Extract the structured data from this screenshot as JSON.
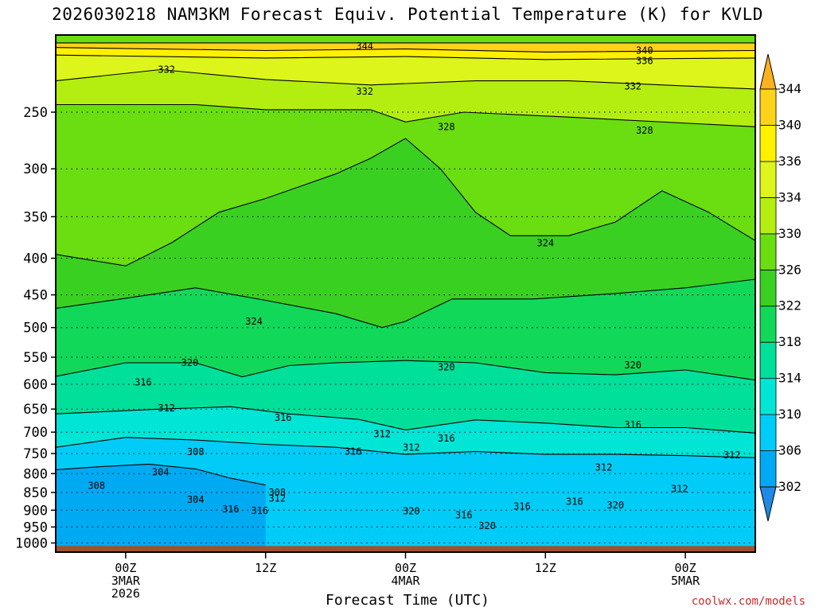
{
  "title": "2026030218 NAM3KM Forecast Equiv. Potential Temperature (K) for KVLD",
  "credit": "coolwx.com/models",
  "chart_data": {
    "type": "contour",
    "variable": "Equivalent potential temperature (K)",
    "xlabel": "Forecast Time (UTC)",
    "ylabel": "",
    "y_scale": "log-pressure",
    "y_direction": "decreasing-upward",
    "x_range_hours": [
      -6,
      54
    ],
    "y_range_hPa": [
      1030,
      195
    ],
    "y_ticks": [
      250,
      300,
      350,
      400,
      450,
      500,
      550,
      600,
      650,
      700,
      750,
      800,
      850,
      900,
      950,
      1000
    ],
    "x_ticks": [
      {
        "hour": 0,
        "lines": [
          "00Z",
          "3MAR",
          "2026"
        ]
      },
      {
        "hour": 12,
        "lines": [
          "12Z"
        ]
      },
      {
        "hour": 24,
        "lines": [
          "00Z",
          "4MAR"
        ]
      },
      {
        "hour": 36,
        "lines": [
          "12Z"
        ]
      },
      {
        "hour": 48,
        "lines": [
          "00Z",
          "5MAR"
        ]
      }
    ],
    "grid": "dotted horizontal lines at pressure ticks",
    "ground_below_hPa": 1010,
    "ground_color": "#a0522d",
    "colorbar": {
      "placement": "right",
      "extend": "both",
      "levels": [
        302,
        306,
        310,
        314,
        318,
        322,
        326,
        330,
        334,
        336,
        340,
        344
      ],
      "tick_labels": [
        "302",
        "306",
        "310",
        "314",
        "318",
        "322",
        "326",
        "330",
        "334",
        "336",
        "340",
        "344"
      ],
      "colors": [
        "#1e8ae6",
        "#00aaf2",
        "#00ccf7",
        "#00e5d6",
        "#00e09a",
        "#12d85a",
        "#3ad022",
        "#6ade10",
        "#b4ee10",
        "#ddf51a",
        "#fff000",
        "#ffd21a",
        "#ffb01e"
      ]
    },
    "series": [
      {
        "value": 344,
        "points": [
          [
            -6,
            200
          ],
          [
            54,
            200
          ]
        ]
      },
      {
        "value": 340,
        "points": [
          [
            -6,
            203
          ],
          [
            12,
            205
          ],
          [
            24,
            204
          ],
          [
            36,
            206
          ],
          [
            54,
            205
          ]
        ]
      },
      {
        "value": 336,
        "points": [
          [
            -6,
            208
          ],
          [
            12,
            210
          ],
          [
            24,
            209
          ],
          [
            36,
            211
          ],
          [
            54,
            210
          ]
        ]
      },
      {
        "value": 332,
        "points": [
          [
            -6,
            226
          ],
          [
            3,
            218
          ],
          [
            12,
            225
          ],
          [
            21,
            229
          ],
          [
            30,
            226
          ],
          [
            38,
            226
          ],
          [
            54,
            232
          ]
        ]
      },
      {
        "value": 328,
        "points": [
          [
            -6,
            244
          ],
          [
            6,
            244
          ],
          [
            12,
            248
          ],
          [
            21,
            248
          ],
          [
            24,
            258
          ],
          [
            29,
            250
          ],
          [
            38,
            254
          ],
          [
            54,
            262
          ]
        ]
      },
      {
        "value": 324,
        "points": [
          [
            -6,
            395
          ],
          [
            0,
            410
          ],
          [
            4,
            380
          ],
          [
            8,
            345
          ],
          [
            12,
            330
          ],
          [
            18,
            305
          ],
          [
            21,
            290
          ],
          [
            24,
            272
          ],
          [
            27,
            300
          ],
          [
            30,
            345
          ],
          [
            33,
            372
          ],
          [
            38,
            372
          ],
          [
            42,
            356
          ],
          [
            46,
            322
          ],
          [
            50,
            345
          ],
          [
            54,
            378
          ]
        ]
      },
      {
        "value": 320,
        "points": [
          [
            -6,
            470
          ],
          [
            0,
            455
          ],
          [
            6,
            440
          ],
          [
            12,
            458
          ],
          [
            18,
            478
          ],
          [
            22,
            500
          ],
          [
            24,
            490
          ],
          [
            28,
            456
          ],
          [
            35,
            456
          ],
          [
            42,
            448
          ],
          [
            48,
            440
          ],
          [
            54,
            428
          ]
        ]
      },
      {
        "value": 316,
        "points": [
          [
            -6,
            585
          ],
          [
            0,
            560
          ],
          [
            6,
            560
          ],
          [
            10,
            586
          ],
          [
            14,
            565
          ],
          [
            18,
            560
          ],
          [
            24,
            556
          ],
          [
            30,
            560
          ],
          [
            36,
            578
          ],
          [
            42,
            582
          ],
          [
            48,
            573
          ],
          [
            54,
            592
          ]
        ]
      },
      {
        "value": 312,
        "points": [
          [
            -6,
            660
          ],
          [
            3,
            650
          ],
          [
            9,
            645
          ],
          [
            14,
            660
          ],
          [
            20,
            672
          ],
          [
            24,
            695
          ],
          [
            30,
            673
          ],
          [
            36,
            680
          ],
          [
            42,
            690
          ],
          [
            48,
            690
          ],
          [
            54,
            702
          ]
        ]
      },
      {
        "value": 308,
        "points": [
          [
            -6,
            735
          ],
          [
            0,
            712
          ],
          [
            6,
            718
          ],
          [
            12,
            728
          ],
          [
            18,
            735
          ],
          [
            24,
            752
          ],
          [
            30,
            745
          ],
          [
            36,
            752
          ],
          [
            42,
            752
          ],
          [
            48,
            755
          ],
          [
            54,
            760
          ]
        ]
      },
      {
        "value": 304,
        "points": [
          [
            -6,
            790
          ],
          [
            -2,
            782
          ],
          [
            2,
            776
          ],
          [
            6,
            788
          ],
          [
            9,
            812
          ],
          [
            12,
            830
          ]
        ]
      }
    ],
    "labels": [
      {
        "text": "344",
        "hour": 20.5,
        "p": 202
      },
      {
        "text": "340",
        "hour": 44.5,
        "p": 205
      },
      {
        "text": "336",
        "hour": 44.5,
        "p": 212
      },
      {
        "text": "332",
        "hour": 3.5,
        "p": 218
      },
      {
        "text": "332",
        "hour": 20.5,
        "p": 234
      },
      {
        "text": "332",
        "hour": 43.5,
        "p": 230
      },
      {
        "text": "328",
        "hour": 27.5,
        "p": 262
      },
      {
        "text": "328",
        "hour": 44.5,
        "p": 265
      },
      {
        "text": "324",
        "hour": 11,
        "p": 490
      },
      {
        "text": "324",
        "hour": 36,
        "p": 381
      },
      {
        "text": "320",
        "hour": 5.5,
        "p": 560
      },
      {
        "text": "320",
        "hour": 27.5,
        "p": 568
      },
      {
        "text": "320",
        "hour": 43.5,
        "p": 564
      },
      {
        "text": "316",
        "hour": 1.5,
        "p": 596
      },
      {
        "text": "316",
        "hour": 13.5,
        "p": 668
      },
      {
        "text": "316",
        "hour": 27.5,
        "p": 714
      },
      {
        "text": "316",
        "hour": 19.5,
        "p": 745
      },
      {
        "text": "316",
        "hour": 43.5,
        "p": 684
      },
      {
        "text": "312",
        "hour": 3.5,
        "p": 648
      },
      {
        "text": "312",
        "hour": 22,
        "p": 704
      },
      {
        "text": "312",
        "hour": 24.5,
        "p": 736
      },
      {
        "text": "312",
        "hour": 52,
        "p": 754
      },
      {
        "text": "312",
        "hour": 41,
        "p": 784
      },
      {
        "text": "312",
        "hour": 47.5,
        "p": 840
      },
      {
        "text": "312",
        "hour": 13,
        "p": 867
      },
      {
        "text": "308",
        "hour": 6,
        "p": 746
      },
      {
        "text": "308",
        "hour": -2.5,
        "p": 832
      },
      {
        "text": "308",
        "hour": 13,
        "p": 850
      },
      {
        "text": "304",
        "hour": 3,
        "p": 796
      },
      {
        "text": "304",
        "hour": 6,
        "p": 870
      },
      {
        "text": "316",
        "hour": 9,
        "p": 897
      },
      {
        "text": "316",
        "hour": 11.5,
        "p": 902
      },
      {
        "text": "316",
        "hour": 34,
        "p": 889
      },
      {
        "text": "316",
        "hour": 38.5,
        "p": 875
      },
      {
        "text": "316",
        "hour": 29,
        "p": 914
      },
      {
        "text": "320",
        "hour": 24.5,
        "p": 903
      },
      {
        "text": "320",
        "hour": 42,
        "p": 886
      },
      {
        "text": "320",
        "hour": 31,
        "p": 946
      }
    ]
  }
}
